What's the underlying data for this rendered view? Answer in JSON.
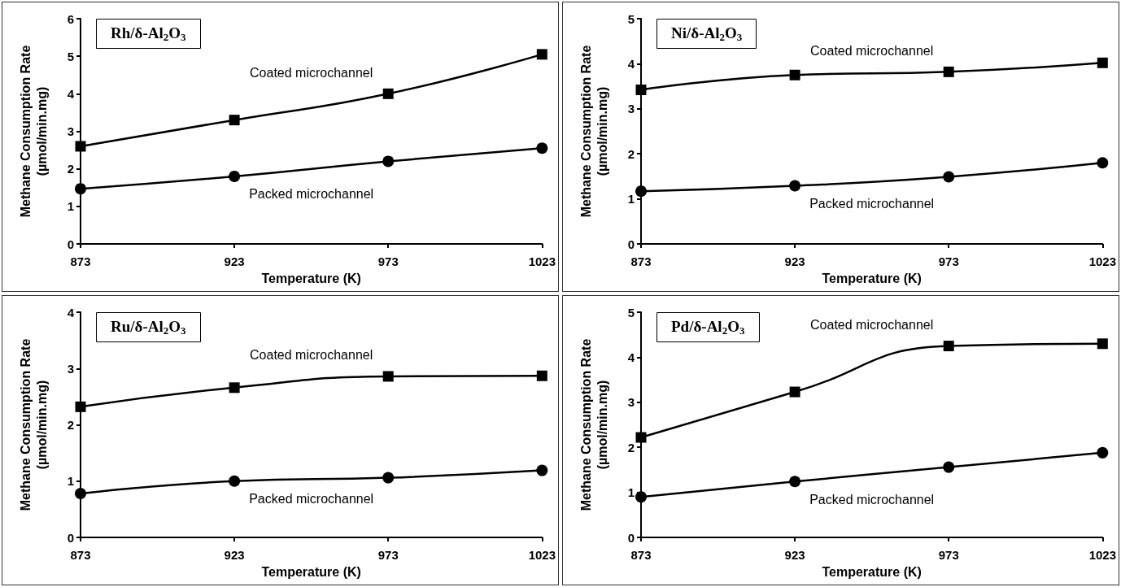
{
  "chart_data": [
    {
      "type": "line",
      "title": "Rh/δ-Al$_{2}$O$_{3}$",
      "xlabel": "Temperature (K)",
      "ylabel": "Methane Consumption Rate\n(µmol/min.mg)",
      "x": [
        873,
        923,
        973,
        1023
      ],
      "xlim": [
        873,
        1023
      ],
      "xticks": [
        873,
        923,
        973,
        1023
      ],
      "ylim": [
        0,
        6
      ],
      "yticks": [
        0,
        1,
        2,
        3,
        4,
        5,
        6
      ],
      "series": [
        {
          "name": "Coated microchannel",
          "color": "#000000",
          "marker": "square",
          "values": [
            2.6,
            3.3,
            4.0,
            5.05
          ]
        },
        {
          "name": "Packed microchannel",
          "color": "#000000",
          "marker": "circle",
          "values": [
            1.47,
            1.8,
            2.2,
            2.55
          ]
        }
      ]
    },
    {
      "type": "line",
      "title": "Ni/δ-Al$_{2}$O$_{3}$",
      "xlabel": "Temperature (K)",
      "ylabel": "Methane Consumption Rate\n(µmol/min.mg)",
      "x": [
        873,
        923,
        973,
        1023
      ],
      "xlim": [
        873,
        1023
      ],
      "xticks": [
        873,
        923,
        973,
        1023
      ],
      "ylim": [
        0,
        5
      ],
      "yticks": [
        0,
        1,
        2,
        3,
        4,
        5
      ],
      "series": [
        {
          "name": "Coated microchannel",
          "color": "#000000",
          "marker": "square",
          "values": [
            3.42,
            3.75,
            3.82,
            4.02
          ]
        },
        {
          "name": "Packed microchannel",
          "color": "#000000",
          "marker": "circle",
          "values": [
            1.17,
            1.29,
            1.49,
            1.8
          ]
        }
      ]
    },
    {
      "type": "line",
      "title": "Ru/δ-Al$_{2}$O$_{3}$",
      "xlabel": "Temperature (K)",
      "ylabel": "Methane Consumption Rate\n(µmol/min.mg)",
      "x": [
        873,
        923,
        973,
        1023
      ],
      "xlim": [
        873,
        1023
      ],
      "xticks": [
        873,
        923,
        973,
        1023
      ],
      "ylim": [
        0,
        4
      ],
      "yticks": [
        0,
        1,
        2,
        3,
        4
      ],
      "series": [
        {
          "name": "Coated microchannel",
          "color": "#000000",
          "marker": "square",
          "values": [
            2.32,
            2.66,
            2.86,
            2.87
          ]
        },
        {
          "name": "Packed microchannel",
          "color": "#000000",
          "marker": "circle",
          "values": [
            0.78,
            1.0,
            1.06,
            1.19
          ]
        }
      ]
    },
    {
      "type": "line",
      "title": "Pd/δ-Al$_{2}$O$_{3}$",
      "xlabel": "Temperature (K)",
      "ylabel": "Methane Consumption Rate\n(µmol/min.mg)",
      "x": [
        873,
        923,
        973,
        1023
      ],
      "xlim": [
        873,
        1023
      ],
      "xticks": [
        873,
        923,
        973,
        1023
      ],
      "ylim": [
        0,
        5
      ],
      "yticks": [
        0,
        1,
        2,
        3,
        4,
        5
      ],
      "series": [
        {
          "name": "Coated microchannel",
          "color": "#000000",
          "marker": "square",
          "values": [
            2.22,
            3.23,
            4.25,
            4.3
          ]
        },
        {
          "name": "Packed microchannel",
          "color": "#000000",
          "marker": "circle",
          "values": [
            0.9,
            1.24,
            1.56,
            1.88
          ]
        }
      ]
    }
  ]
}
